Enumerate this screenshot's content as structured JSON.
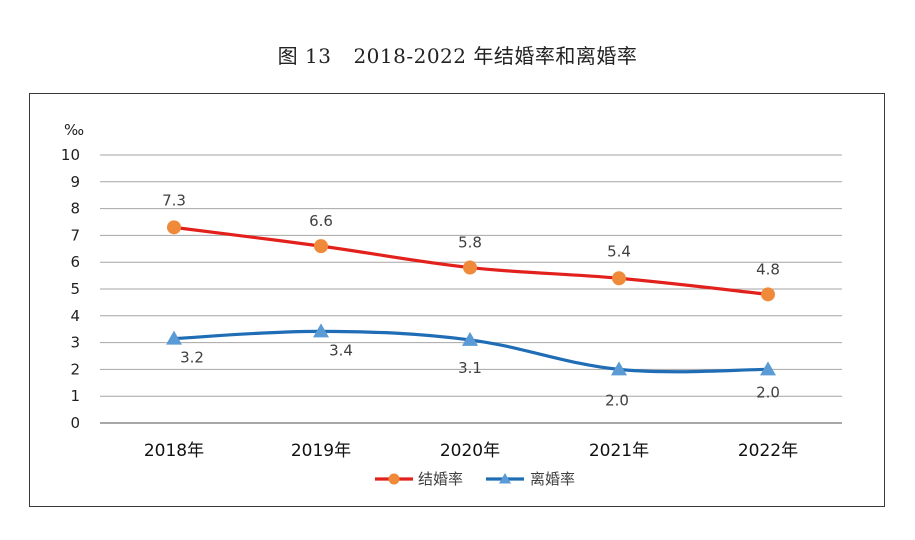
{
  "figure": {
    "label": "图 13",
    "title": "2018-2022 年结婚率和离婚率"
  },
  "chart_data": {
    "type": "line",
    "title": "2018-2022 年结婚率和离婚率",
    "ylabel": "‰",
    "xlabel": "",
    "ylim": [
      0,
      10
    ],
    "yticks": [
      "0",
      "1",
      "2",
      "3",
      "4",
      "5",
      "6",
      "7",
      "8",
      "9",
      "10"
    ],
    "categories": [
      "2018年",
      "2019年",
      "2020年",
      "2021年",
      "2022年"
    ],
    "grid": true,
    "legend_position": "bottom-center",
    "series": [
      {
        "name": "结婚率",
        "values": [
          7.3,
          6.6,
          5.8,
          5.4,
          4.8
        ],
        "plotted": [
          7.3,
          6.6,
          5.8,
          5.4,
          4.8
        ],
        "labels": [
          "7.3",
          "6.6",
          "5.8",
          "5.4",
          "4.8"
        ],
        "color": "#e3211c",
        "marker_color": "#f08a3b",
        "marker": "circle"
      },
      {
        "name": "离婚率",
        "values": [
          3.2,
          3.4,
          3.1,
          2.0,
          2.0
        ],
        "plotted": [
          3.15,
          3.42,
          3.1,
          2.0,
          2.0
        ],
        "labels": [
          "3.2",
          "3.4",
          "3.1",
          "2.0",
          "2.0"
        ],
        "color": "#1f6db5",
        "marker_color": "#5b9bd5",
        "marker": "triangle"
      }
    ]
  }
}
